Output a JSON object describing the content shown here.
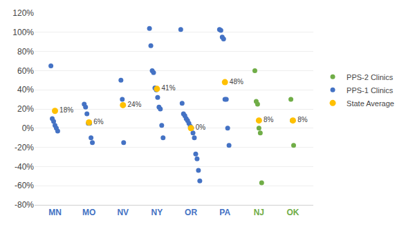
{
  "chart_data": {
    "type": "scatter",
    "categories": [
      "MN",
      "MO",
      "NV",
      "NY",
      "OR",
      "PA",
      "NJ",
      "OK"
    ],
    "series": [
      {
        "name": "PPS-2 Clinics",
        "color": "#70AD47",
        "marker": "circle",
        "values": [
          null,
          null,
          null,
          null,
          null,
          null,
          [
            60,
            28,
            25,
            0,
            -5,
            -57
          ],
          [
            30,
            8,
            -18
          ]
        ]
      },
      {
        "name": "PPS-1 Clinics",
        "color": "#4472C4",
        "marker": "circle",
        "values": [
          [
            65,
            10,
            7,
            3,
            0,
            -3
          ],
          [
            25,
            22,
            15,
            5,
            5,
            -10,
            -15
          ],
          [
            50,
            30,
            -15
          ],
          [
            104,
            86,
            60,
            58,
            42,
            40,
            32,
            22,
            20,
            3,
            -10
          ],
          [
            103,
            26,
            15,
            13,
            10,
            8,
            5,
            2,
            0,
            -5,
            -10,
            -27,
            -32,
            -44,
            -55
          ],
          [
            103,
            102,
            95,
            93,
            30,
            30,
            0,
            -18
          ],
          null,
          null
        ]
      },
      {
        "name": "State Average",
        "color": "#FFC000",
        "marker": "circle",
        "values": [
          18,
          6,
          24,
          41,
          0,
          48,
          8,
          8
        ],
        "value_labels": [
          "18%",
          "6%",
          "24%",
          "41%",
          "0%",
          "48%",
          "8%",
          "8%"
        ]
      }
    ],
    "ylim": [
      -80,
      120
    ],
    "yticks": [
      {
        "value": -80,
        "label": "-80%"
      },
      {
        "value": -60,
        "label": "-60%"
      },
      {
        "value": -40,
        "label": "-40%"
      },
      {
        "value": -20,
        "label": "-20%"
      },
      {
        "value": 0,
        "label": "0%"
      },
      {
        "value": 20,
        "label": "20%"
      },
      {
        "value": 40,
        "label": "40%"
      },
      {
        "value": 60,
        "label": "60%"
      },
      {
        "value": 80,
        "label": "80%"
      },
      {
        "value": 100,
        "label": "100%"
      },
      {
        "value": 120,
        "label": "120%"
      }
    ],
    "grid": true,
    "legend": "right",
    "data_labels": true
  }
}
